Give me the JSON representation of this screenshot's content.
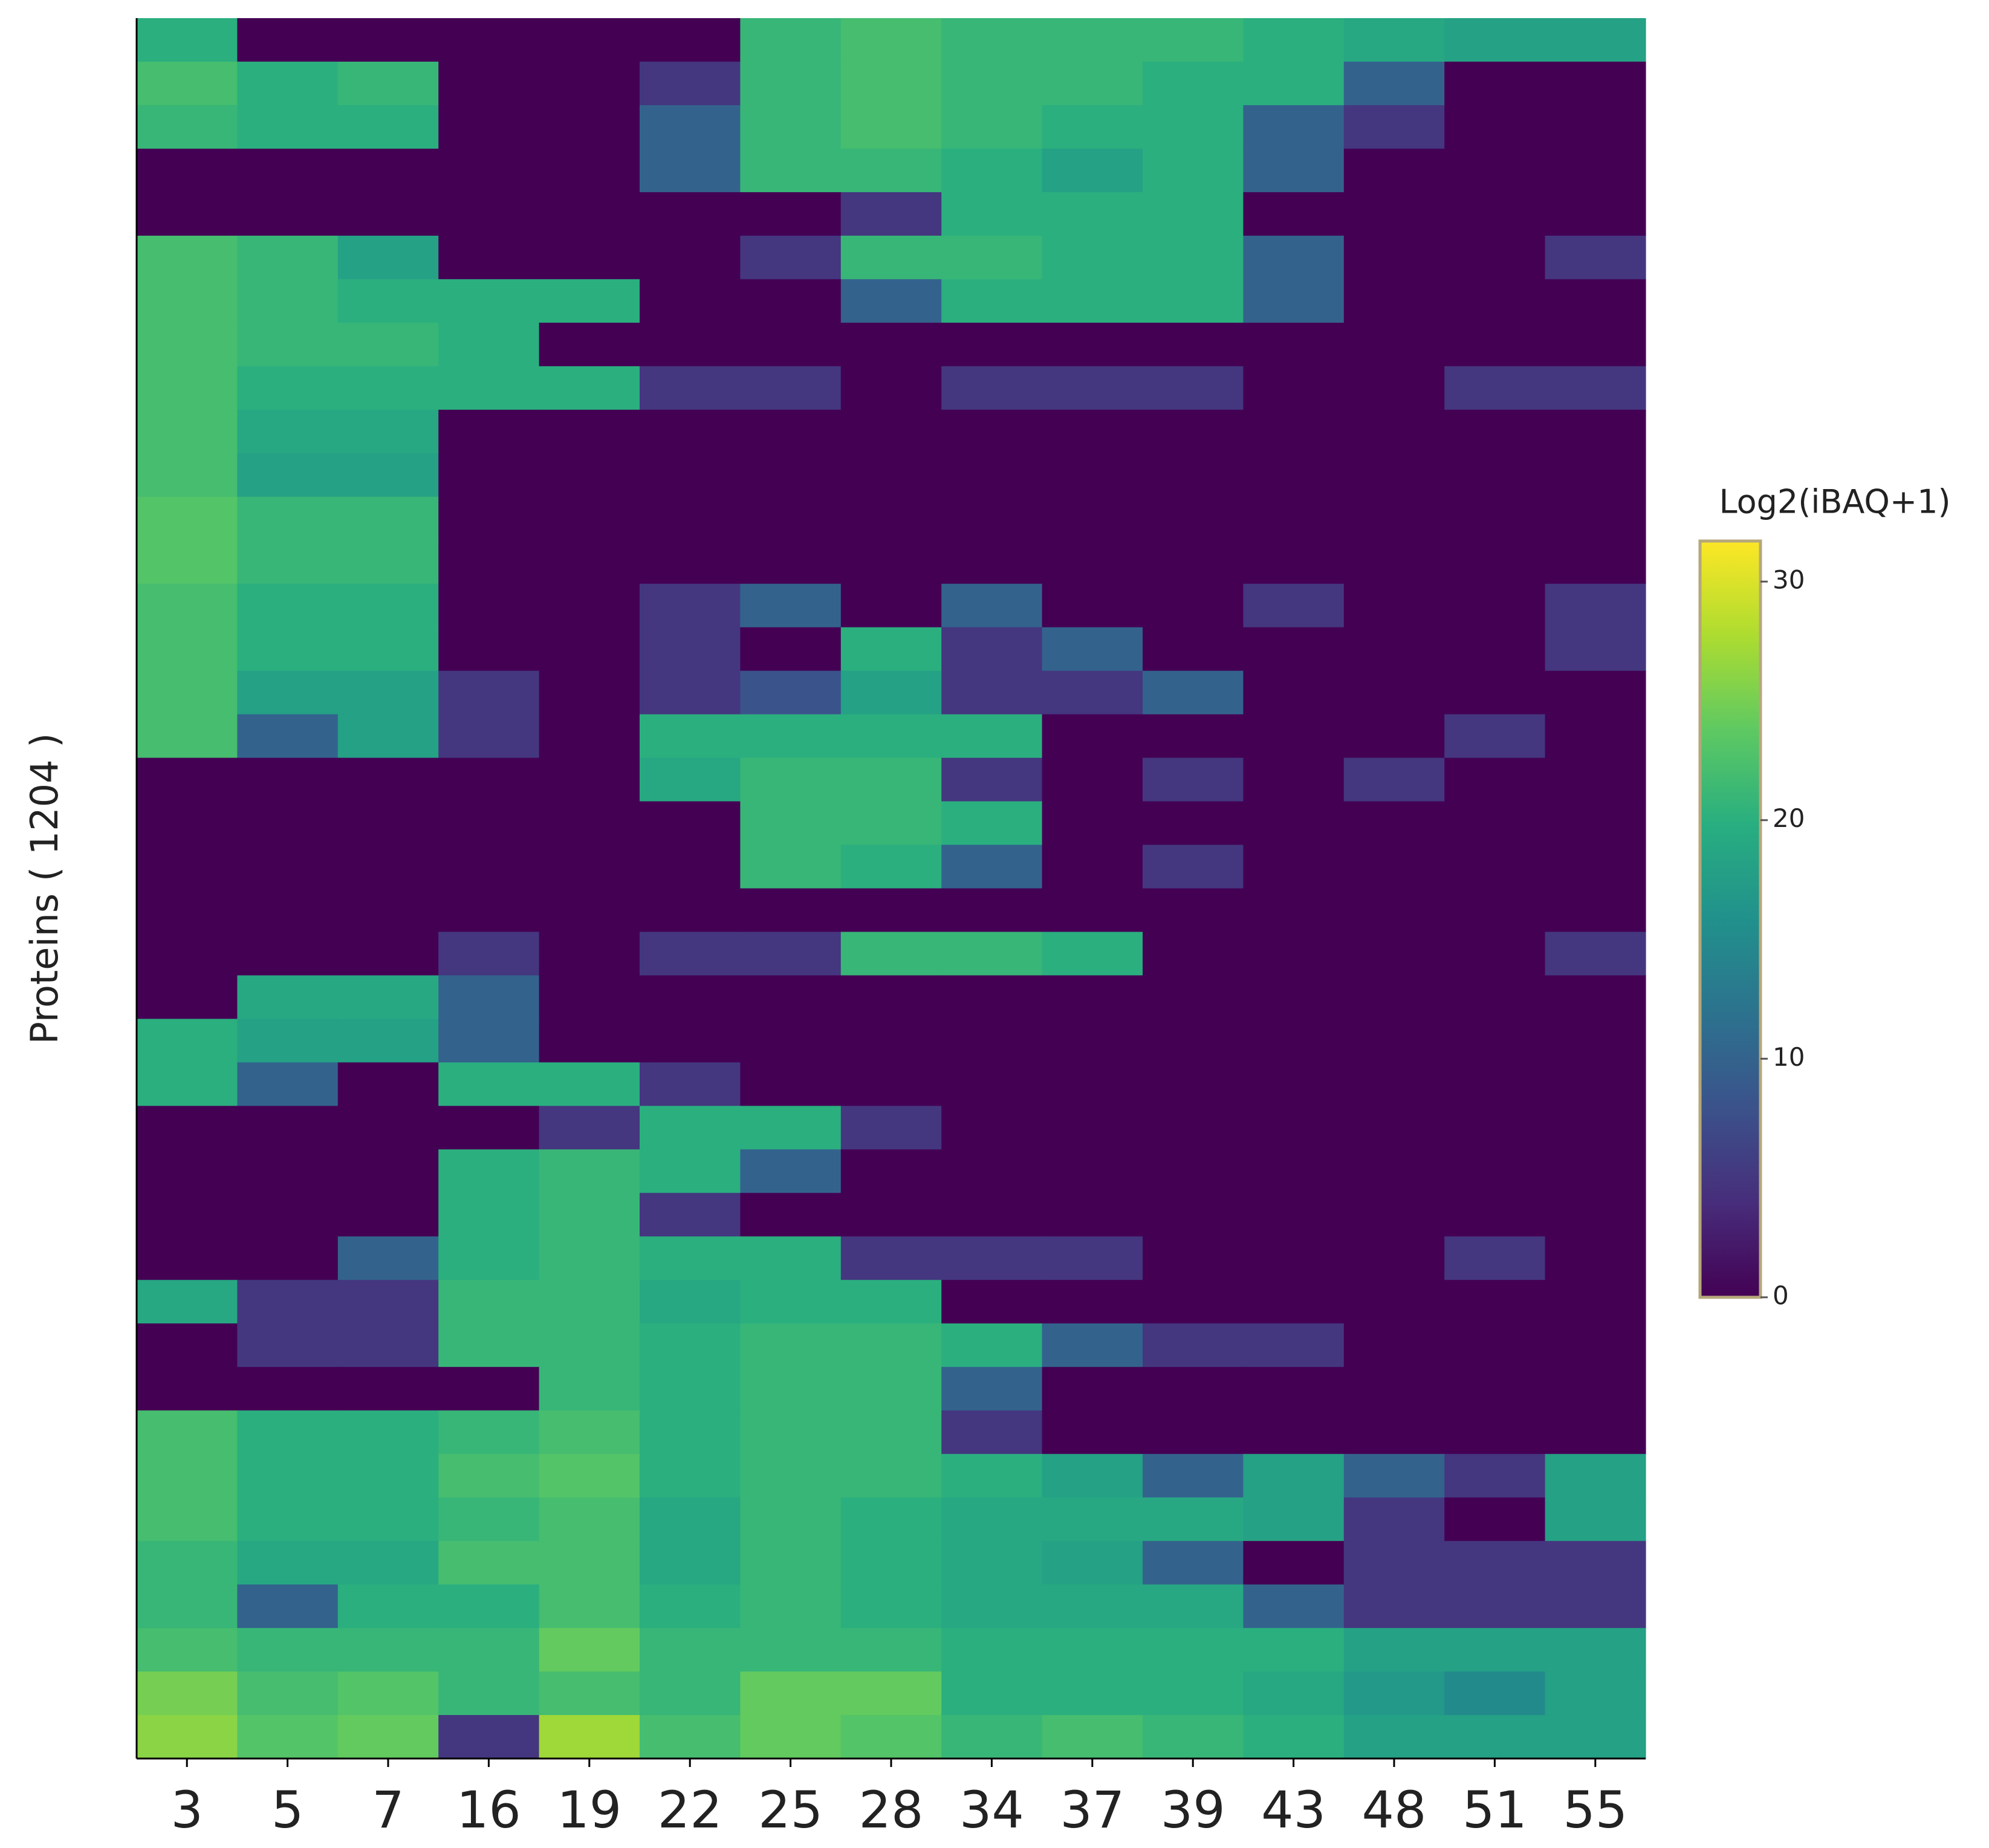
{
  "chart_data": {
    "type": "heatmap",
    "y_label": "Proteins ( 1204 )",
    "colorbar_title": "Log2(iBAQ+1)",
    "categories": [
      "3",
      "5",
      "7",
      "16",
      "19",
      "22",
      "25",
      "28",
      "34",
      "37",
      "39",
      "43",
      "48",
      "51",
      "55"
    ],
    "zlim": [
      0,
      31.7
    ],
    "zticks": [
      0,
      10,
      20,
      30
    ],
    "colorscale": [
      "#440154",
      "#472d7b",
      "#3b528b",
      "#2c728e",
      "#21918c",
      "#28ae80",
      "#5ec962",
      "#addc30",
      "#fde725"
    ],
    "z": [
      [
        20,
        0,
        0,
        0,
        0,
        0,
        21,
        22,
        21,
        21,
        21,
        20,
        19,
        18,
        18
      ],
      [
        22,
        20,
        21,
        0,
        0,
        5,
        21,
        22,
        21,
        21,
        20,
        20,
        10,
        0,
        0
      ],
      [
        21,
        20,
        20,
        0,
        0,
        10,
        21,
        22,
        21,
        20,
        20,
        10,
        5,
        0,
        0
      ],
      [
        0,
        0,
        0,
        0,
        0,
        10,
        21,
        21,
        20,
        18,
        20,
        10,
        0,
        0,
        0
      ],
      [
        0,
        0,
        0,
        0,
        0,
        0,
        0,
        5,
        20,
        20,
        20,
        0,
        0,
        0,
        0
      ],
      [
        22,
        21,
        18,
        0,
        0,
        0,
        5,
        21,
        21,
        20,
        20,
        10,
        0,
        0,
        5
      ],
      [
        22,
        21,
        20,
        20,
        20,
        0,
        0,
        10,
        20,
        20,
        20,
        10,
        0,
        0,
        0
      ],
      [
        22,
        21,
        21,
        20,
        0,
        0,
        0,
        0,
        0,
        0,
        0,
        0,
        0,
        0,
        0
      ],
      [
        22,
        20,
        20,
        20,
        20,
        5,
        5,
        0,
        5,
        5,
        5,
        0,
        0,
        5,
        5
      ],
      [
        22,
        19,
        19,
        0,
        0,
        0,
        0,
        0,
        0,
        0,
        0,
        0,
        0,
        0,
        0
      ],
      [
        22,
        18,
        18,
        0,
        0,
        0,
        0,
        0,
        0,
        0,
        0,
        0,
        0,
        0,
        0
      ],
      [
        23,
        21,
        21,
        0,
        0,
        0,
        0,
        0,
        0,
        0,
        0,
        0,
        0,
        0,
        0
      ],
      [
        23,
        21,
        21,
        0,
        0,
        0,
        0,
        0,
        0,
        0,
        0,
        0,
        0,
        0,
        0
      ],
      [
        22,
        20,
        20,
        0,
        0,
        5,
        10,
        0,
        10,
        0,
        0,
        5,
        0,
        0,
        5
      ],
      [
        22,
        20,
        20,
        0,
        0,
        5,
        0,
        20,
        5,
        10,
        0,
        0,
        0,
        0,
        5
      ],
      [
        22,
        18,
        18,
        5,
        0,
        5,
        8,
        18,
        5,
        5,
        10,
        0,
        0,
        0,
        0
      ],
      [
        22,
        10,
        18,
        5,
        0,
        20,
        20,
        20,
        20,
        0,
        0,
        0,
        0,
        5,
        0
      ],
      [
        0,
        0,
        0,
        0,
        0,
        19,
        21,
        21,
        5,
        0,
        5,
        0,
        5,
        0,
        0
      ],
      [
        0,
        0,
        0,
        0,
        0,
        0,
        21,
        21,
        20,
        0,
        0,
        0,
        0,
        0,
        0
      ],
      [
        0,
        0,
        0,
        0,
        0,
        0,
        21,
        20,
        10,
        0,
        5,
        0,
        0,
        0,
        0
      ],
      [
        0,
        0,
        0,
        0,
        0,
        0,
        0,
        0,
        0,
        0,
        0,
        0,
        0,
        0,
        0
      ],
      [
        0,
        0,
        0,
        5,
        0,
        5,
        5,
        21,
        21,
        20,
        0,
        0,
        0,
        0,
        5
      ],
      [
        0,
        19,
        19,
        10,
        0,
        0,
        0,
        0,
        0,
        0,
        0,
        0,
        0,
        0,
        0
      ],
      [
        20,
        18,
        18,
        10,
        0,
        0,
        0,
        0,
        0,
        0,
        0,
        0,
        0,
        0,
        0
      ],
      [
        20,
        10,
        0,
        20,
        20,
        5,
        0,
        0,
        0,
        0,
        0,
        0,
        0,
        0,
        0
      ],
      [
        0,
        0,
        0,
        0,
        5,
        20,
        20,
        5,
        0,
        0,
        0,
        0,
        0,
        0,
        0
      ],
      [
        0,
        0,
        0,
        20,
        21,
        20,
        10,
        0,
        0,
        0,
        0,
        0,
        0,
        0,
        0
      ],
      [
        0,
        0,
        0,
        20,
        21,
        5,
        0,
        0,
        0,
        0,
        0,
        0,
        0,
        0,
        0
      ],
      [
        0,
        0,
        10,
        20,
        21,
        20,
        20,
        5,
        5,
        5,
        0,
        0,
        0,
        5,
        0
      ],
      [
        19,
        5,
        5,
        21,
        21,
        19,
        20,
        20,
        0,
        0,
        0,
        0,
        0,
        0,
        0
      ],
      [
        0,
        5,
        5,
        21,
        21,
        20,
        21,
        21,
        20,
        10,
        5,
        5,
        0,
        0,
        0
      ],
      [
        0,
        0,
        0,
        0,
        21,
        20,
        21,
        21,
        10,
        0,
        0,
        0,
        0,
        0,
        0
      ],
      [
        22,
        20,
        20,
        21,
        22,
        20,
        21,
        21,
        5,
        0,
        0,
        0,
        0,
        0,
        0
      ],
      [
        22,
        20,
        20,
        22,
        23,
        20,
        21,
        21,
        20,
        18,
        10,
        18,
        10,
        5,
        18
      ],
      [
        22,
        20,
        20,
        21,
        22,
        19,
        21,
        20,
        19,
        19,
        19,
        18,
        5,
        0,
        18
      ],
      [
        21,
        19,
        19,
        22,
        22,
        19,
        21,
        20,
        19,
        18,
        10,
        0,
        5,
        5,
        5
      ],
      [
        21,
        10,
        20,
        20,
        22,
        20,
        21,
        20,
        19,
        19,
        19,
        10,
        5,
        5,
        5
      ],
      [
        22,
        21,
        21,
        21,
        24,
        21,
        21,
        21,
        20,
        20,
        20,
        20,
        18,
        18,
        18
      ],
      [
        25,
        22,
        23,
        21,
        22,
        21,
        24,
        24,
        20,
        20,
        20,
        19,
        17,
        15,
        18
      ],
      [
        26,
        23,
        24,
        5,
        27,
        22,
        24,
        23,
        21,
        22,
        21,
        20,
        18,
        18,
        18
      ]
    ]
  }
}
